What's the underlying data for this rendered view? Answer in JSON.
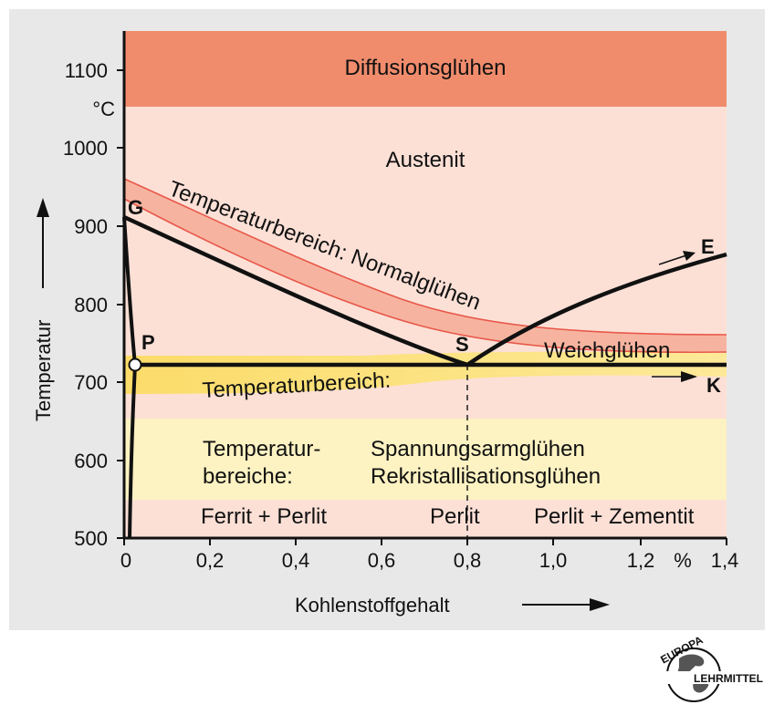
{
  "labels": {
    "diffusion": "Diffusionsglühen",
    "austenit": "Austenit",
    "normal": "Temperaturbereich: Normalglühen",
    "weich": "Weichglühen",
    "weich_range": "Temperaturbereich:",
    "ranges_line1": "Temperatur-",
    "ranges_line2": "bereiche:",
    "spannung": "Spannungsarmglühen",
    "rekrist": "Rekristallisationsglühen",
    "ferrit": "Ferrit + Perlit",
    "perlit": "Perlit",
    "zementit": "Perlit + Zementit"
  },
  "points": {
    "G": "G",
    "P": "P",
    "S": "S",
    "E": "E",
    "K": "K"
  },
  "axes": {
    "y_label": "Temperatur",
    "y_unit": "°C",
    "x_label": "Kohlenstoffgehalt",
    "x_unit": "%",
    "y_ticks": [
      "500",
      "600",
      "700",
      "800",
      "900",
      "1000",
      "1100"
    ],
    "x_ticks": [
      "0",
      "0,2",
      "0,4",
      "0,6",
      "0,8",
      "1,0",
      "1,2",
      "1,4"
    ]
  },
  "colors": {
    "panel": "#e8e8e8",
    "austenite": "#fce0d6",
    "diffusion": "#f08c6c",
    "normal_band": "#f6b4a0",
    "normal_edge": "#e8584a",
    "yellow": "#fde998",
    "yellow_dark": "#fbdc6a",
    "pale_yellow": "#fdf2c2",
    "line": "#111111"
  },
  "logo": {
    "top": "EUROPA",
    "bottom": "LEHRMITTEL"
  }
}
